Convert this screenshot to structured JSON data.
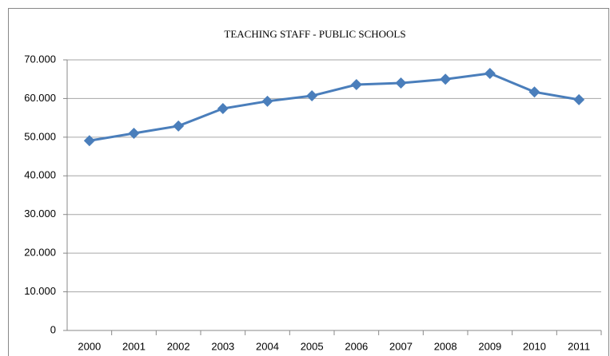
{
  "chart_data": {
    "type": "line",
    "title": "TEACHING STAFF - PUBLIC SCHOOLS",
    "categories": [
      "2000",
      "2001",
      "2002",
      "2003",
      "2004",
      "2005",
      "2006",
      "2007",
      "2008",
      "2009",
      "2010",
      "2011"
    ],
    "series": [
      {
        "name": "Teaching staff",
        "color": "#4a7ebb",
        "values": [
          49100,
          51000,
          52900,
          57400,
          59300,
          60700,
          63600,
          64000,
          65000,
          66500,
          61700,
          59700
        ]
      }
    ],
    "ylim": [
      0,
      70000
    ],
    "yticks": [
      0,
      {
        "value": 10000,
        "label": "10.000"
      },
      {
        "value": 20000,
        "label": "20.000"
      },
      {
        "value": 30000,
        "label": "30.000"
      },
      {
        "value": 40000,
        "label": "40.000"
      },
      {
        "value": 50000,
        "label": "50.000"
      },
      {
        "value": 60000,
        "label": "60.000"
      },
      {
        "value": 70000,
        "label": "70.000"
      }
    ],
    "grid": true
  }
}
